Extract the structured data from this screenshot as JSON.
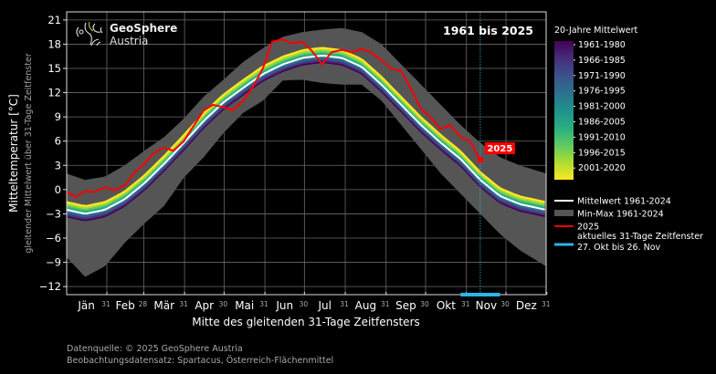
{
  "chart_data": {
    "type": "line",
    "title": "1961 bis 2025",
    "logo": {
      "line1": "GeoSphere",
      "line2": "Austria"
    },
    "xlabel": "Mitte des gleitenden 31-Tage Zeitfensters",
    "ylabel": "Mitteltemperatur [°C]",
    "ylabel_sub": "gleitender Mittelwert über 31-Tage Zeitfenster",
    "ylim": [
      -13,
      22
    ],
    "yticks": [
      -12,
      -9,
      -6,
      -3,
      0,
      3,
      6,
      9,
      12,
      15,
      18,
      21
    ],
    "xlim_days": [
      1,
      365
    ],
    "months": [
      {
        "label": "Jän",
        "days": 31
      },
      {
        "label": "Feb",
        "days": 28
      },
      {
        "label": "Mär",
        "days": 31
      },
      {
        "label": "Apr",
        "days": 30
      },
      {
        "label": "Mai",
        "days": 31
      },
      {
        "label": "Jun",
        "days": 30
      },
      {
        "label": "Jul",
        "days": 31
      },
      {
        "label": "Aug",
        "days": 31
      },
      {
        "label": "Sep",
        "days": 30
      },
      {
        "label": "Okt",
        "days": 31
      },
      {
        "label": "Nov",
        "days": 30
      },
      {
        "label": "Dez",
        "days": 31
      }
    ],
    "grid": true,
    "current_day": 315,
    "window_days": [
      300,
      330
    ],
    "colors": {
      "mean": "#ffffff",
      "minmax": "#555555",
      "year": "#ff0000",
      "window": "#29b6e6",
      "grid": "#6a6a6a",
      "logo_accent": "#b5c23a"
    },
    "marker_label": "2025",
    "minmax": {
      "days": [
        1,
        15,
        30,
        45,
        60,
        75,
        90,
        105,
        120,
        135,
        150,
        165,
        180,
        195,
        210,
        225,
        240,
        255,
        270,
        285,
        300,
        315,
        330,
        345,
        365
      ],
      "min": [
        -8.4,
        -10.8,
        -9.5,
        -6.6,
        -4.2,
        -2.0,
        1.5,
        4.0,
        7.0,
        9.5,
        11.0,
        13.5,
        13.6,
        13.2,
        13.0,
        13.0,
        11.0,
        8.0,
        5.0,
        2.0,
        -0.5,
        -3.0,
        -5.5,
        -7.5,
        -9.5
      ],
      "max": [
        2.0,
        1.2,
        1.6,
        3.0,
        4.8,
        6.5,
        8.8,
        11.5,
        13.6,
        15.8,
        17.5,
        18.9,
        19.5,
        19.8,
        20.0,
        19.5,
        18.0,
        15.5,
        13.0,
        10.5,
        8.0,
        5.8,
        4.0,
        3.0,
        2.0
      ]
    },
    "mean_1961_2024": {
      "days": [
        1,
        15,
        30,
        45,
        60,
        75,
        90,
        105,
        120,
        135,
        150,
        165,
        180,
        195,
        210,
        225,
        240,
        255,
        270,
        285,
        300,
        315,
        330,
        345,
        365
      ],
      "values": [
        -2.5,
        -3.0,
        -2.5,
        -1.2,
        0.8,
        3.2,
        5.8,
        8.5,
        10.8,
        12.6,
        14.3,
        15.5,
        16.3,
        16.6,
        16.3,
        15.2,
        13.0,
        10.5,
        8.0,
        5.8,
        3.8,
        1.2,
        -0.8,
        -1.8,
        -2.5
      ]
    },
    "series_20yr": [
      {
        "name": "1961-1980",
        "color": "#440154",
        "offset": -0.9
      },
      {
        "name": "1966-1985",
        "color": "#472d7b",
        "offset": -0.7
      },
      {
        "name": "1971-1990",
        "color": "#3b528b",
        "offset": -0.45
      },
      {
        "name": "1976-1995",
        "color": "#2c728e",
        "offset": -0.2
      },
      {
        "name": "1981-2000",
        "color": "#21918c",
        "offset": 0.05
      },
      {
        "name": "1986-2005",
        "color": "#28ae80",
        "offset": 0.3
      },
      {
        "name": "1991-2010",
        "color": "#5ec962",
        "offset": 0.55
      },
      {
        "name": "1996-2015",
        "color": "#addc30",
        "offset": 0.8
      },
      {
        "name": "2001-2020",
        "color": "#fde725",
        "offset": 1.05
      }
    ],
    "year_2025": {
      "name": "2025",
      "days": [
        1,
        8,
        15,
        22,
        30,
        37,
        45,
        52,
        60,
        67,
        75,
        82,
        90,
        97,
        105,
        112,
        120,
        127,
        135,
        142,
        150,
        157,
        165,
        172,
        180,
        187,
        195,
        202,
        210,
        217,
        225,
        232,
        240,
        247,
        255,
        262,
        270,
        277,
        285,
        292,
        300,
        307,
        315
      ],
      "values": [
        -0.3,
        -0.9,
        -0.2,
        -0.3,
        0.3,
        -0.1,
        0.5,
        2.0,
        3.2,
        4.5,
        5.2,
        4.8,
        6.0,
        7.8,
        9.8,
        10.5,
        10.2,
        9.8,
        11.0,
        12.6,
        15.0,
        18.3,
        18.6,
        18.1,
        18.3,
        17.2,
        15.5,
        17.0,
        17.3,
        17.0,
        17.4,
        17.0,
        16.0,
        15.0,
        14.7,
        12.6,
        10.0,
        9.0,
        7.5,
        8.0,
        6.5,
        6.0,
        3.7
      ]
    },
    "legend_colorbar_title": "20-Jahre Mittelwert",
    "legend_entries": [
      {
        "label": "Mittelwert 1961-2024",
        "type": "line",
        "color": "#ffffff"
      },
      {
        "label": "Min-Max 1961-2024",
        "type": "patch",
        "color": "#555555"
      },
      {
        "label": "2025",
        "type": "line",
        "color": "#ff0000"
      },
      {
        "label": "aktuelles 31-Tage Zeitfenster",
        "label2": "27. Okt bis 26. Nov",
        "type": "line",
        "color": "#29b6e6"
      }
    ]
  },
  "footer": {
    "line1": "Datenquelle: © 2025 GeoSphere Austria",
    "line2": "Beobachtungsdatensatz: Spartacus, Österreich-Flächenmittel"
  }
}
